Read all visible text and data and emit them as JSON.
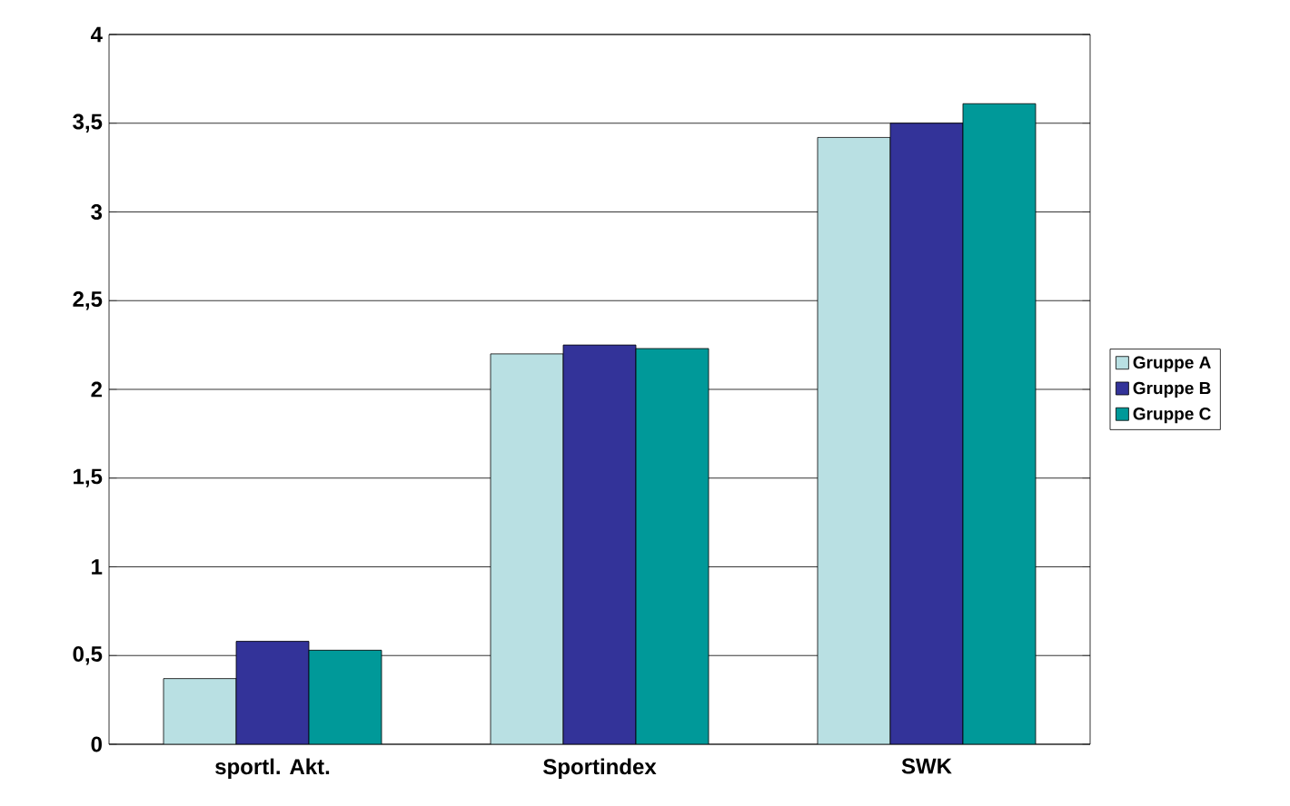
{
  "chart_data": {
    "type": "bar",
    "categories": [
      "sportl. Akt.",
      "Sportindex",
      "SWK"
    ],
    "series": [
      {
        "name": "Gruppe A",
        "color": "#b9e0e3",
        "values": [
          0.37,
          2.2,
          3.42
        ]
      },
      {
        "name": "Gruppe B",
        "color": "#333399",
        "values": [
          0.58,
          2.25,
          3.5
        ]
      },
      {
        "name": "Gruppe C",
        "color": "#009999",
        "values": [
          0.53,
          2.23,
          3.61
        ]
      }
    ],
    "ylim": [
      0,
      4
    ],
    "yticks": [
      0,
      {
        "value": 0.5,
        "label": "0,5"
      },
      1,
      {
        "value": 1.5,
        "label": "1,5"
      },
      2,
      {
        "value": 2.5,
        "label": "2,5"
      },
      3,
      {
        "value": 3.5,
        "label": "3,5"
      },
      4
    ],
    "grid": "y",
    "legend": "right"
  }
}
